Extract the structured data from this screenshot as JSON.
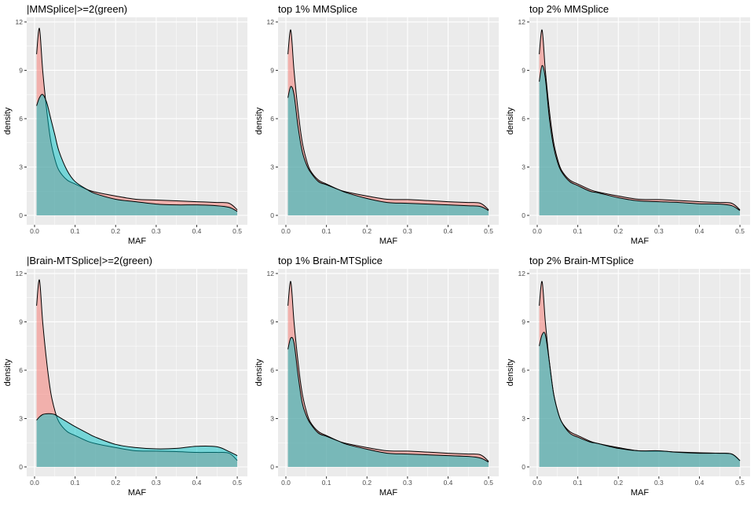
{
  "chart_data": [
    {
      "type": "area",
      "title": "|MMSplice|>=2(green)",
      "xlabel": "MAF",
      "ylabel": "density",
      "xlim": [
        -0.0194,
        0.525
      ],
      "ylim": [
        -0.585,
        12.29
      ],
      "xticks": [
        "0.0",
        "0.1",
        "0.2",
        "0.3",
        "0.4",
        "0.5"
      ],
      "yticks": [
        "0",
        "3",
        "6",
        "9",
        "12"
      ],
      "grid": true,
      "legend": "none",
      "x": [
        0.005,
        0.012,
        0.02,
        0.03,
        0.04,
        0.05,
        0.06,
        0.08,
        0.1,
        0.13,
        0.15,
        0.2,
        0.25,
        0.3,
        0.35,
        0.4,
        0.45,
        0.48,
        0.5
      ],
      "series": [
        {
          "color": "#F8766D",
          "values": [
            10,
            11.6,
            9,
            6.5,
            4.6,
            3.5,
            2.8,
            2.2,
            1.95,
            1.6,
            1.45,
            1.2,
            1.0,
            0.95,
            0.9,
            0.85,
            0.8,
            0.75,
            0.35
          ]
        },
        {
          "color": "#00BFC4",
          "values": [
            6.8,
            7.3,
            7.5,
            7.0,
            6.0,
            5.0,
            4.0,
            2.8,
            2.1,
            1.6,
            1.35,
            1.0,
            0.85,
            0.7,
            0.65,
            0.65,
            0.6,
            0.5,
            0.25
          ]
        }
      ]
    },
    {
      "type": "area",
      "title": "top 1% MMSplice",
      "xlabel": "MAF",
      "ylabel": "density",
      "xlim": [
        -0.0194,
        0.525
      ],
      "ylim": [
        -0.585,
        12.29
      ],
      "xticks": [
        "0.0",
        "0.1",
        "0.2",
        "0.3",
        "0.4",
        "0.5"
      ],
      "yticks": [
        "0",
        "3",
        "6",
        "9",
        "12"
      ],
      "grid": true,
      "legend": "none",
      "x": [
        0.005,
        0.012,
        0.02,
        0.03,
        0.04,
        0.05,
        0.06,
        0.08,
        0.1,
        0.13,
        0.15,
        0.2,
        0.25,
        0.3,
        0.35,
        0.4,
        0.45,
        0.48,
        0.5
      ],
      "series": [
        {
          "color": "#F8766D",
          "values": [
            10,
            11.5,
            9,
            6.5,
            4.6,
            3.5,
            2.8,
            2.2,
            1.95,
            1.6,
            1.45,
            1.2,
            1.0,
            0.98,
            0.92,
            0.85,
            0.8,
            0.75,
            0.35
          ]
        },
        {
          "color": "#00BFC4",
          "values": [
            7.3,
            8.0,
            7.5,
            5.5,
            4.0,
            3.2,
            2.7,
            2.1,
            1.9,
            1.6,
            1.4,
            1.05,
            0.8,
            0.75,
            0.7,
            0.65,
            0.6,
            0.55,
            0.3
          ]
        }
      ]
    },
    {
      "type": "area",
      "title": "top 2% MMSplice",
      "xlabel": "MAF",
      "ylabel": "density",
      "xlim": [
        -0.0194,
        0.525
      ],
      "ylim": [
        -0.585,
        12.29
      ],
      "xticks": [
        "0.0",
        "0.1",
        "0.2",
        "0.3",
        "0.4",
        "0.5"
      ],
      "yticks": [
        "0",
        "3",
        "6",
        "9",
        "12"
      ],
      "grid": true,
      "legend": "none",
      "x": [
        0.005,
        0.012,
        0.02,
        0.03,
        0.04,
        0.05,
        0.06,
        0.08,
        0.1,
        0.13,
        0.15,
        0.2,
        0.25,
        0.3,
        0.35,
        0.4,
        0.45,
        0.48,
        0.5
      ],
      "series": [
        {
          "color": "#F8766D",
          "values": [
            10,
            11.5,
            9,
            6.5,
            4.6,
            3.5,
            2.8,
            2.2,
            1.95,
            1.6,
            1.45,
            1.2,
            1.0,
            0.98,
            0.92,
            0.85,
            0.8,
            0.75,
            0.35
          ]
        },
        {
          "color": "#00BFC4",
          "values": [
            8.3,
            9.3,
            8.5,
            6.0,
            4.3,
            3.3,
            2.7,
            2.1,
            1.85,
            1.5,
            1.4,
            1.1,
            0.9,
            0.85,
            0.8,
            0.72,
            0.7,
            0.6,
            0.3
          ]
        }
      ]
    },
    {
      "type": "area",
      "title": "|Brain-MTSplice|>=2(green)",
      "xlabel": "MAF",
      "ylabel": "density",
      "xlim": [
        -0.0194,
        0.525
      ],
      "ylim": [
        -0.585,
        12.29
      ],
      "xticks": [
        "0.0",
        "0.1",
        "0.2",
        "0.3",
        "0.4",
        "0.5"
      ],
      "yticks": [
        "0",
        "3",
        "6",
        "9",
        "12"
      ],
      "grid": true,
      "legend": "none",
      "x": [
        0.005,
        0.012,
        0.02,
        0.03,
        0.04,
        0.05,
        0.06,
        0.08,
        0.1,
        0.13,
        0.15,
        0.2,
        0.25,
        0.3,
        0.35,
        0.4,
        0.45,
        0.48,
        0.5
      ],
      "series": [
        {
          "color": "#F8766D",
          "values": [
            10,
            11.6,
            9,
            6.5,
            4.6,
            3.5,
            2.8,
            2.2,
            1.95,
            1.6,
            1.45,
            1.2,
            1.0,
            0.98,
            0.95,
            0.9,
            0.9,
            0.85,
            0.4
          ]
        },
        {
          "color": "#00BFC4",
          "values": [
            2.9,
            3.1,
            3.25,
            3.3,
            3.3,
            3.25,
            3.1,
            2.8,
            2.5,
            2.1,
            1.85,
            1.4,
            1.2,
            1.12,
            1.15,
            1.28,
            1.25,
            0.95,
            0.7
          ]
        }
      ]
    },
    {
      "type": "area",
      "title": "top 1% Brain-MTSplice",
      "xlabel": "MAF",
      "ylabel": "density",
      "xlim": [
        -0.0194,
        0.525
      ],
      "ylim": [
        -0.585,
        12.29
      ],
      "xticks": [
        "0.0",
        "0.1",
        "0.2",
        "0.3",
        "0.4",
        "0.5"
      ],
      "yticks": [
        "0",
        "3",
        "6",
        "9",
        "12"
      ],
      "grid": true,
      "legend": "none",
      "x": [
        0.005,
        0.012,
        0.02,
        0.03,
        0.04,
        0.05,
        0.06,
        0.08,
        0.1,
        0.13,
        0.15,
        0.2,
        0.25,
        0.3,
        0.35,
        0.4,
        0.45,
        0.48,
        0.5
      ],
      "series": [
        {
          "color": "#F8766D",
          "values": [
            10,
            11.5,
            9,
            6.5,
            4.6,
            3.5,
            2.8,
            2.2,
            1.95,
            1.6,
            1.45,
            1.2,
            1.0,
            0.98,
            0.92,
            0.85,
            0.8,
            0.75,
            0.35
          ]
        },
        {
          "color": "#00BFC4",
          "values": [
            7.3,
            8.0,
            7.7,
            5.7,
            4.0,
            3.2,
            2.7,
            2.1,
            1.9,
            1.6,
            1.4,
            1.1,
            0.85,
            0.8,
            0.75,
            0.7,
            0.65,
            0.55,
            0.3
          ]
        }
      ]
    },
    {
      "type": "area",
      "title": "top 2% Brain-MTSplice",
      "xlabel": "MAF",
      "ylabel": "density",
      "xlim": [
        -0.0194,
        0.525
      ],
      "ylim": [
        -0.585,
        12.29
      ],
      "xticks": [
        "0.0",
        "0.1",
        "0.2",
        "0.3",
        "0.4",
        "0.5"
      ],
      "yticks": [
        "0",
        "3",
        "6",
        "9",
        "12"
      ],
      "grid": true,
      "legend": "none",
      "x": [
        0.005,
        0.012,
        0.02,
        0.03,
        0.04,
        0.05,
        0.06,
        0.08,
        0.1,
        0.13,
        0.15,
        0.2,
        0.25,
        0.3,
        0.35,
        0.4,
        0.45,
        0.48,
        0.5
      ],
      "series": [
        {
          "color": "#F8766D",
          "values": [
            10,
            11.5,
            9,
            6.5,
            4.6,
            3.5,
            2.8,
            2.2,
            1.95,
            1.6,
            1.45,
            1.2,
            1.0,
            0.98,
            0.92,
            0.88,
            0.85,
            0.8,
            0.38
          ]
        },
        {
          "color": "#00BFC4",
          "values": [
            7.5,
            8.2,
            8.2,
            6.5,
            4.6,
            3.5,
            2.8,
            2.1,
            1.85,
            1.55,
            1.45,
            1.15,
            1.0,
            1.0,
            0.9,
            0.85,
            0.85,
            0.8,
            0.4
          ]
        }
      ]
    }
  ]
}
